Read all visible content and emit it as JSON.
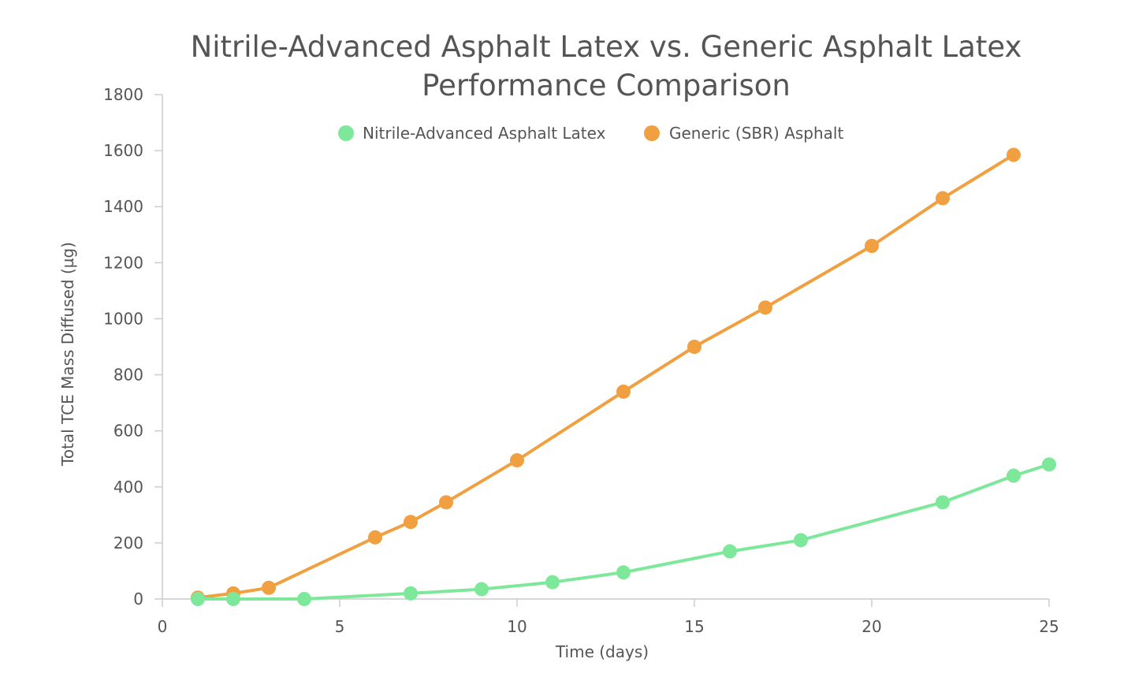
{
  "chart_data": {
    "type": "line",
    "title_lines": [
      "Nitrile-Advanced Asphalt Latex vs. Generic Asphalt Latex",
      "Performance Comparison"
    ],
    "xlabel": "Time (days)",
    "ylabel": "Total TCE Mass Diffused (µg)",
    "xlim": [
      0,
      25
    ],
    "ylim": [
      0,
      1800
    ],
    "x_ticks": [
      "0",
      "5",
      "10",
      "15",
      "20",
      "25"
    ],
    "y_ticks": [
      "0",
      "200",
      "400",
      "600",
      "800",
      "1000",
      "1200",
      "1400",
      "1600",
      "1800"
    ],
    "grid": false,
    "legend_position": "top-center",
    "series": [
      {
        "name": "Nitrile-Advanced Asphalt Latex",
        "color": "#7de89a",
        "points": [
          [
            1,
            0
          ],
          [
            2,
            0
          ],
          [
            4,
            0
          ],
          [
            7,
            20
          ],
          [
            9,
            35
          ],
          [
            11,
            60
          ],
          [
            13,
            95
          ],
          [
            16,
            170
          ],
          [
            18,
            210
          ],
          [
            22,
            345
          ],
          [
            24,
            440
          ],
          [
            25,
            480
          ]
        ]
      },
      {
        "name": "Generic (SBR) Asphalt",
        "color": "#f0a040",
        "points": [
          [
            1,
            5
          ],
          [
            2,
            20
          ],
          [
            3,
            40
          ],
          [
            6,
            220
          ],
          [
            7,
            275
          ],
          [
            8,
            345
          ],
          [
            10,
            495
          ],
          [
            13,
            740
          ],
          [
            15,
            900
          ],
          [
            17,
            1040
          ],
          [
            20,
            1260
          ],
          [
            22,
            1430
          ],
          [
            24,
            1585
          ]
        ]
      }
    ]
  }
}
